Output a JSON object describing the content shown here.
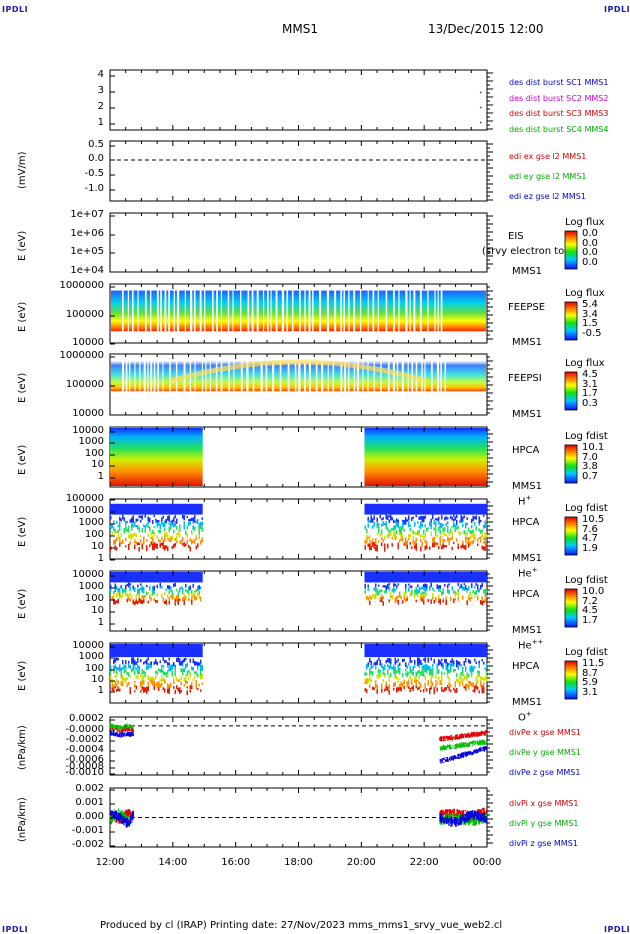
{
  "header": {
    "corner_left": "IPDLI",
    "corner_right": "IPDLI",
    "spacecraft": "MMS1",
    "datetime": "13/Dec/2015 12:00"
  },
  "x_axis": {
    "ticks": [
      "12:00",
      "14:00",
      "16:00",
      "18:00",
      "20:00",
      "22:00",
      "00:00"
    ],
    "range_hours": [
      12,
      24
    ]
  },
  "panels": [
    {
      "id": "position",
      "yticks": [
        "4",
        "3",
        "2",
        "1"
      ],
      "legend": [
        {
          "text": "des dist burst SC1 MMS1",
          "color": "#0000cc"
        },
        {
          "text": "des dist burst SC2 MMS2",
          "color": "#cc00cc"
        },
        {
          "text": "des dist burst SC3 MMS3",
          "color": "#cc0000"
        },
        {
          "text": "des dist burst SC4 MMS4",
          "color": "#00aa00"
        }
      ]
    },
    {
      "id": "edi",
      "ylabel": "(mV/m)",
      "yticks": [
        "0.5",
        "0.0",
        "-0.5",
        "-1.0"
      ],
      "legend": [
        {
          "text": "edi ex gse l2 MMS1",
          "color": "#cc0000"
        },
        {
          "text": "edi ey gse l2 MMS1",
          "color": "#00aa00"
        },
        {
          "text": "edi ez gse l2 MMS1",
          "color": "#0000cc"
        }
      ]
    },
    {
      "id": "eis",
      "ylabel": "E (eV)",
      "yticks": [
        "1e+07",
        "1e+06",
        "1e+05",
        "1e+04"
      ],
      "instrument": [
        "EIS",
        "MMS1"
      ],
      "overlay_text": "(srvy electron to",
      "cbar_title": "Log flux",
      "cbar_values": [
        "0.0",
        "0.0",
        "0.0",
        "0.0"
      ]
    },
    {
      "id": "feepse",
      "ylabel": "E (eV)",
      "yticks": [
        "1000000",
        "100000",
        "10000"
      ],
      "instrument": [
        "FEEPSE",
        "MMS1"
      ],
      "cbar_title": "Log flux",
      "cbar_values": [
        "5.4",
        "3.4",
        "1.5",
        "-0.5"
      ]
    },
    {
      "id": "feepsi",
      "ylabel": "E (eV)",
      "yticks": [
        "1000000",
        "100000",
        "10000"
      ],
      "instrument": [
        "FEEPSI",
        "MMS1"
      ],
      "cbar_title": "Log flux",
      "cbar_values": [
        "4.5",
        "3.1",
        "1.7",
        "0.3"
      ]
    },
    {
      "id": "hpca_h",
      "ylabel": "E (eV)",
      "yticks": [
        "10000",
        "1000",
        "100",
        "10",
        "1"
      ],
      "instrument": [
        "HPCA",
        "MMS1"
      ],
      "species": "H",
      "species_sup": "+",
      "cbar_title": "Log fdist",
      "cbar_values": [
        "10.1",
        "7.0",
        "3.8",
        "0.7"
      ]
    },
    {
      "id": "hpca_he1",
      "ylabel": "E (eV)",
      "yticks": [
        "100000",
        "10000",
        "1000",
        "100",
        "10",
        "1"
      ],
      "instrument": [
        "HPCA",
        "MMS1"
      ],
      "species": "He",
      "species_sup": "+",
      "cbar_title": "Log fdist",
      "cbar_values": [
        "10.5",
        "7.6",
        "4.7",
        "1.9"
      ]
    },
    {
      "id": "hpca_he2",
      "ylabel": "E (eV)",
      "yticks": [
        "10000",
        "1000",
        "100",
        "10",
        "1"
      ],
      "instrument": [
        "HPCA",
        "MMS1"
      ],
      "species": "He",
      "species_sup": "++",
      "cbar_title": "Log fdist",
      "cbar_values": [
        "10.0",
        "7.2",
        "4.5",
        "1.7"
      ]
    },
    {
      "id": "hpca_o",
      "ylabel": "E (eV)",
      "yticks": [
        "10000",
        "1000",
        "100",
        "10",
        "1"
      ],
      "instrument": [
        "HPCA",
        "MMS1"
      ],
      "species": "O",
      "species_sup": "+",
      "cbar_title": "Log fdist",
      "cbar_values": [
        "11.5",
        "8.7",
        "5.9",
        "3.1"
      ]
    },
    {
      "id": "divpe",
      "ylabel": "(nPa/km)",
      "yticks": [
        "0.0002",
        "-0.0000",
        "-0.0002",
        "-0.0004",
        "-0.0006",
        "-0.0008",
        "-0.0010"
      ],
      "legend": [
        {
          "text": "divPe x gse MMS1",
          "color": "#cc0000"
        },
        {
          "text": "divPe y gse MMS1",
          "color": "#00aa00"
        },
        {
          "text": "divPe z gse MMS1",
          "color": "#0000cc"
        }
      ]
    },
    {
      "id": "divpi",
      "ylabel": "(nPa/km)",
      "yticks": [
        "0.002",
        "0.001",
        "0.000",
        "-0.001",
        "-0.002"
      ],
      "legend": [
        {
          "text": "divPi x gse MMS1",
          "color": "#cc0000"
        },
        {
          "text": "divPi y gse MMS1",
          "color": "#00aa00"
        },
        {
          "text": "divPi z gse MMS1",
          "color": "#0000cc"
        }
      ]
    }
  ],
  "chart_data": [
    {
      "type": "scatter",
      "panel": "position",
      "yrange": [
        0.5,
        4.5
      ],
      "x_hours": [
        23.8,
        23.8,
        23.8
      ],
      "y": [
        2.0,
        3.0,
        1.0
      ]
    },
    {
      "type": "line",
      "panel": "edi",
      "yrange": [
        -1.3,
        0.6
      ],
      "reference_y": 0.0,
      "series": []
    },
    {
      "type": "heatmap",
      "panel": "eis",
      "yscale": "log",
      "yrange": [
        10000,
        10000000
      ],
      "data_intervals_hours": []
    },
    {
      "type": "heatmap",
      "panel": "feepse",
      "yscale": "log",
      "yrange": [
        10000,
        1000000
      ],
      "data_intervals_hours": [
        [
          12.0,
          24.0
        ]
      ],
      "energy_range": [
        25000,
        600000
      ]
    },
    {
      "type": "heatmap",
      "panel": "feepsi",
      "yscale": "log",
      "yrange": [
        10000,
        1000000
      ],
      "data_intervals_hours": [
        [
          12.0,
          24.0
        ]
      ],
      "energy_range": [
        60000,
        600000
      ]
    },
    {
      "type": "heatmap",
      "panel": "hpca_h",
      "yscale": "log",
      "yrange": [
        1,
        40000
      ],
      "data_intervals_hours": [
        [
          12.0,
          14.95
        ],
        [
          20.1,
          24.0
        ]
      ],
      "energy_range": [
        1,
        40000
      ]
    },
    {
      "type": "heatmap",
      "panel": "hpca_he1",
      "yscale": "log",
      "yrange": [
        1,
        100000
      ],
      "data_intervals_hours": [
        [
          12.0,
          14.95
        ],
        [
          20.1,
          24.0
        ]
      ],
      "energy_range": [
        1,
        40000
      ]
    },
    {
      "type": "heatmap",
      "panel": "hpca_he2",
      "yscale": "log",
      "yrange": [
        1,
        20000
      ],
      "data_intervals_hours": [
        [
          12.0,
          14.95
        ],
        [
          20.1,
          24.0
        ]
      ],
      "energy_range": [
        3,
        20000
      ]
    },
    {
      "type": "heatmap",
      "panel": "hpca_o",
      "yscale": "log",
      "yrange": [
        1,
        20000
      ],
      "data_intervals_hours": [
        [
          12.0,
          14.95
        ],
        [
          20.1,
          24.0
        ]
      ],
      "energy_range": [
        3,
        20000
      ]
    },
    {
      "type": "line",
      "panel": "divpe",
      "yrange": [
        -0.0011,
        0.0002
      ],
      "reference_y": 0.0,
      "series": [
        {
          "x_hours": [
            12.0,
            12.3,
            12.6,
            12.75
          ],
          "values": [
            -3e-05,
            -0.0001,
            -5e-05,
            -0.0001
          ]
        },
        {
          "x_hours": [
            12.0,
            12.3,
            12.6,
            12.75
          ],
          "values": [
            1e-05,
            -5e-05,
            0.0,
            -5e-05
          ]
        },
        {
          "x_hours": [
            12.0,
            12.3,
            12.6,
            12.75
          ],
          "values": [
            -0.00015,
            -0.0002,
            -0.00018,
            -0.0002
          ]
        },
        {
          "x_hours": [
            22.5,
            23.0,
            23.5,
            24.0
          ],
          "values": [
            -0.0003,
            -0.00025,
            -0.0002,
            -0.00015
          ]
        },
        {
          "x_hours": [
            22.5,
            23.0,
            23.5,
            24.0
          ],
          "values": [
            -0.0005,
            -0.00045,
            -0.0004,
            -0.00035
          ]
        },
        {
          "x_hours": [
            22.5,
            23.0,
            23.5,
            24.0
          ],
          "values": [
            -0.0008,
            -0.0007,
            -0.0006,
            -0.0005
          ]
        }
      ]
    },
    {
      "type": "line",
      "panel": "divpi",
      "yrange": [
        -0.0022,
        0.0022
      ],
      "reference_y": 0.0,
      "series": [
        {
          "x_hours": [
            12.0,
            12.3,
            12.6,
            12.75
          ],
          "values": [
            0.0002,
            -0.0001,
            0.0003,
            0.0
          ]
        },
        {
          "x_hours": [
            12.0,
            12.3,
            12.6,
            12.75
          ],
          "values": [
            -0.0002,
            0.0004,
            -0.0003,
            0.0002
          ]
        },
        {
          "x_hours": [
            12.0,
            12.3,
            12.6,
            12.75
          ],
          "values": [
            0.0004,
            0.0,
            -0.0005,
            0.0003
          ]
        },
        {
          "x_hours": [
            22.5,
            23.0,
            23.5,
            24.0
          ],
          "values": [
            0.0002,
            0.0003,
            0.0001,
            0.0004
          ]
        },
        {
          "x_hours": [
            22.5,
            23.0,
            23.5,
            24.0
          ],
          "values": [
            -0.0002,
            0.0,
            -0.0003,
            0.0
          ]
        },
        {
          "x_hours": [
            22.5,
            23.0,
            23.5,
            24.0
          ],
          "values": [
            0.0,
            -0.0004,
            0.0002,
            -0.0001
          ]
        }
      ]
    }
  ],
  "footer": {
    "text": "Produced by cl (IRAP)   Printing date: 27/Nov/2023   mms_mms1_srvy_vue_web2.cl",
    "corner_left": "IPDLI",
    "corner_right": "IPDLI"
  }
}
